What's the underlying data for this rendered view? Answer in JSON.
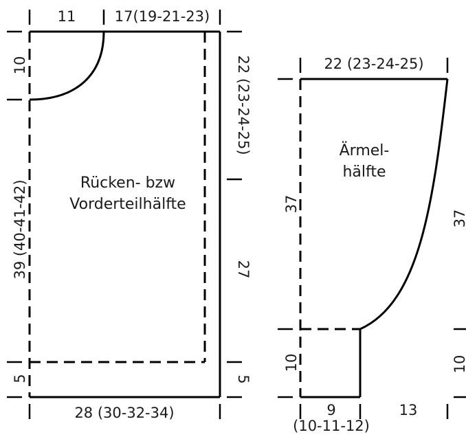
{
  "body_piece": {
    "title_line1": "Rücken- bzw",
    "title_line2": "Vorderteilhälfte",
    "top_left_width": "11",
    "top_right_width": "17(19-21-23)",
    "left_top_height": "10",
    "left_main_height": "39 (40-41-42)",
    "left_bottom_height": "5",
    "right_upper_height": "22 (23-24-25)",
    "right_middle_height": "27",
    "right_bottom_height": "5",
    "bottom_width": "28 (30-32-34)"
  },
  "sleeve_piece": {
    "title_line1": "Ärmel-",
    "title_line2": "hälfte",
    "top_width": "22 (23-24-25)",
    "left_main_height": "37",
    "left_bottom_height": "10",
    "bottom_left_width_line1": "9",
    "bottom_left_width_line2": "(10-11-12)",
    "bottom_right_width": "13",
    "right_main_height_cut": "37",
    "right_bottom_height_cut": "10"
  }
}
